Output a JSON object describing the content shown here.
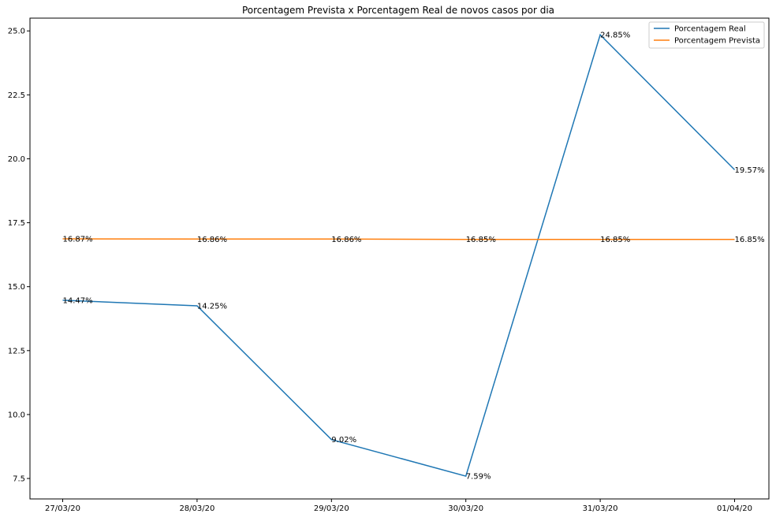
{
  "chart_data": {
    "type": "line",
    "title": "Porcentagem Prevista x Porcentagem Real de novos casos por dia",
    "xlabel": "",
    "ylabel": "",
    "categories": [
      "27/03/20",
      "28/03/20",
      "29/03/20",
      "30/03/20",
      "31/03/20",
      "01/04/20"
    ],
    "ylim": [
      6.7,
      25.5
    ],
    "yticks": [
      "7.5",
      "10.0",
      "12.5",
      "15.0",
      "17.5",
      "20.0",
      "22.5",
      "25.0"
    ],
    "grid": false,
    "legend_position": "top-right",
    "series": [
      {
        "name": "Porcentagem Real",
        "color": "#1f77b4",
        "values": [
          14.47,
          14.25,
          9.02,
          7.59,
          24.85,
          19.57
        ],
        "labels": [
          "14.47%",
          "14.25%",
          "9.02%",
          "7.59%",
          "24.85%",
          "19.57%"
        ]
      },
      {
        "name": "Porcentagem Prevista",
        "color": "#ff7f0e",
        "values": [
          16.87,
          16.86,
          16.86,
          16.85,
          16.85,
          16.85
        ],
        "labels": [
          "16.87%",
          "16.86%",
          "16.86%",
          "16.85%",
          "16.85%",
          "16.85%"
        ]
      }
    ]
  }
}
